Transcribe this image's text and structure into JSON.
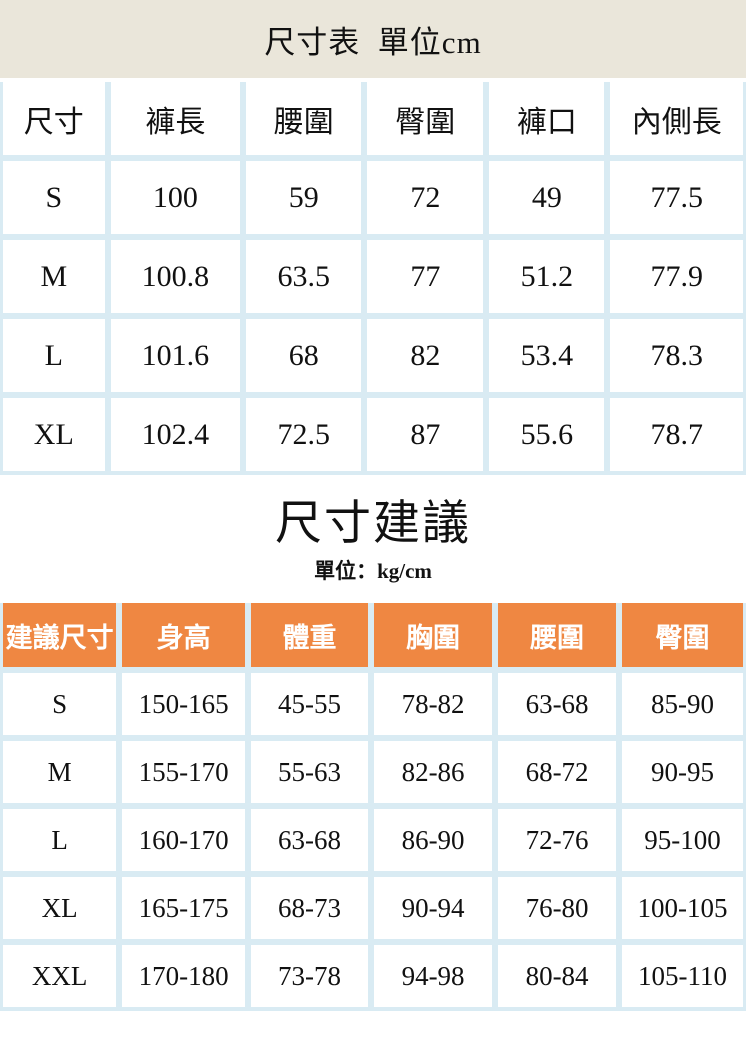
{
  "colors": {
    "title_band_bg": "#EAE6DA",
    "grid_gap_blue": "#D9EBF3",
    "header_orange": "#EF8742",
    "text": "#111111",
    "cell_bg": "#FFFFFF"
  },
  "size_table": {
    "title": "尺寸表  單位cm",
    "columns": [
      "尺寸",
      "褲長",
      "腰圍",
      "臀圍",
      "褲口",
      "內側長"
    ],
    "rows": [
      [
        "S",
        "100",
        "59",
        "72",
        "49",
        "77.5"
      ],
      [
        "M",
        "100.8",
        "63.5",
        "77",
        "51.2",
        "77.9"
      ],
      [
        "L",
        "101.6",
        "68",
        "82",
        "53.4",
        "78.3"
      ],
      [
        "XL",
        "102.4",
        "72.5",
        "87",
        "55.6",
        "78.7"
      ]
    ]
  },
  "suggestion_table": {
    "title": "尺寸建議",
    "unit_label": "單位：kg/cm",
    "columns": [
      "建議尺寸",
      "身高",
      "體重",
      "胸圍",
      "腰圍",
      "臀圍"
    ],
    "rows": [
      [
        "S",
        "150-165",
        "45-55",
        "78-82",
        "63-68",
        "85-90"
      ],
      [
        "M",
        "155-170",
        "55-63",
        "82-86",
        "68-72",
        "90-95"
      ],
      [
        "L",
        "160-170",
        "63-68",
        "86-90",
        "72-76",
        "95-100"
      ],
      [
        "XL",
        "165-175",
        "68-73",
        "90-94",
        "76-80",
        "100-105"
      ],
      [
        "XXL",
        "170-180",
        "73-78",
        "94-98",
        "80-84",
        "105-110"
      ]
    ]
  }
}
